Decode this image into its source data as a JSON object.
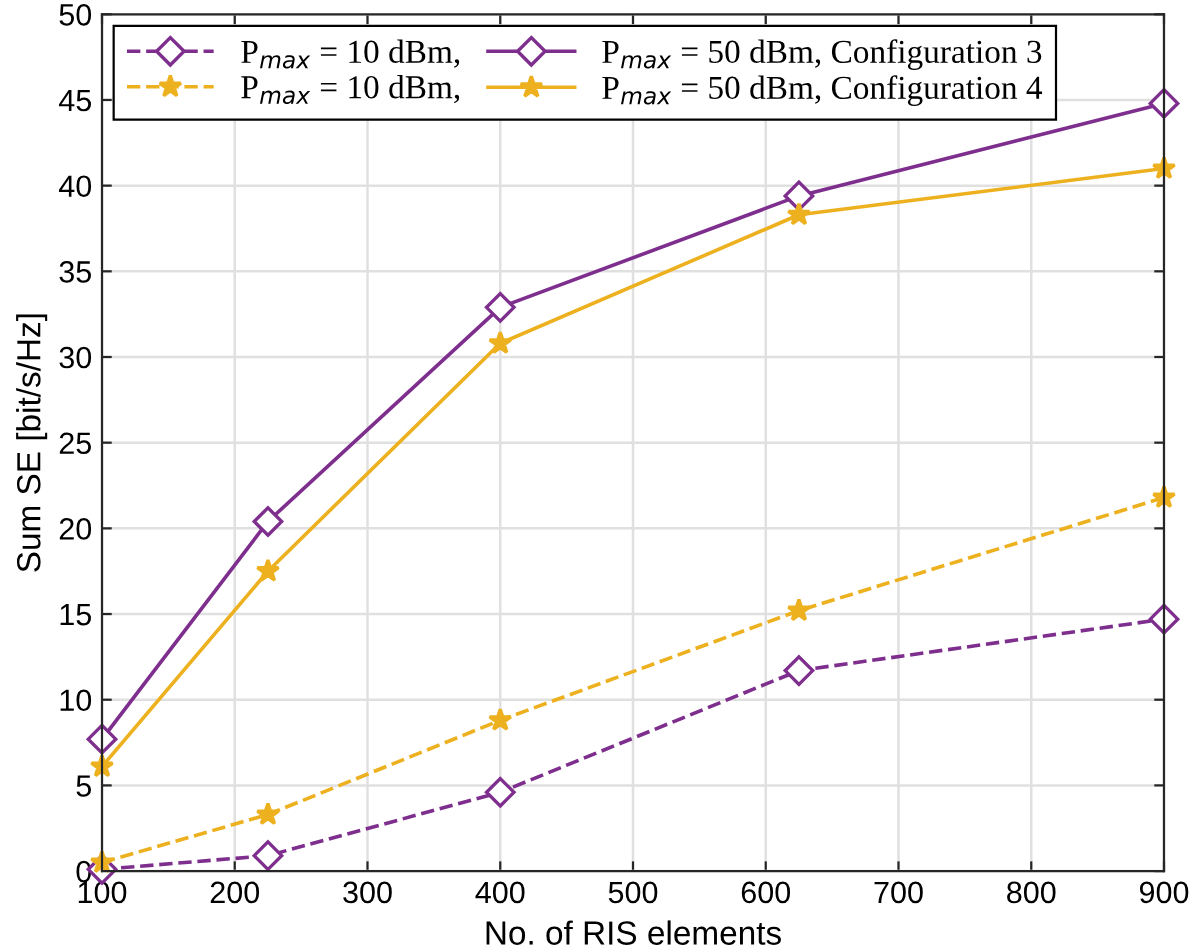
{
  "chart_data": {
    "type": "line",
    "xlabel": "No. of RIS elements",
    "ylabel": "Sum SE [bit/s/Hz]",
    "x": [
      100,
      225,
      400,
      625,
      900
    ],
    "xlim": [
      100,
      900
    ],
    "xticks": [
      100,
      200,
      300,
      400,
      500,
      600,
      700,
      800,
      900
    ],
    "ylim": [
      0,
      50
    ],
    "yticks": [
      0,
      5,
      10,
      15,
      20,
      25,
      30,
      35,
      40,
      45,
      50
    ],
    "grid": true,
    "legend": "top left",
    "series": [
      {
        "name": "P$_{max}$ = 10 dBm,",
        "color": "#7e2f8e",
        "marker": "diamond",
        "line_style": "dashed",
        "values": [
          0.1,
          0.9,
          4.6,
          11.7,
          14.7
        ]
      },
      {
        "name": "P$_{max}$ = 10 dBm,",
        "color": "#edb120",
        "marker": "star",
        "line_style": "dashed",
        "values": [
          0.5,
          3.3,
          8.8,
          15.2,
          21.8
        ]
      },
      {
        "name": "P$_{max}$ = 50 dBm, Configuration 3",
        "color": "#7e2f8e",
        "marker": "diamond",
        "line_style": "solid",
        "values": [
          7.7,
          20.4,
          32.9,
          39.4,
          44.8
        ]
      },
      {
        "name": "P$_{max}$ = 50 dBm, Configuration 4",
        "color": "#edb120",
        "marker": "star",
        "line_style": "solid",
        "values": [
          6.1,
          17.5,
          30.8,
          38.3,
          41.0
        ]
      }
    ]
  }
}
